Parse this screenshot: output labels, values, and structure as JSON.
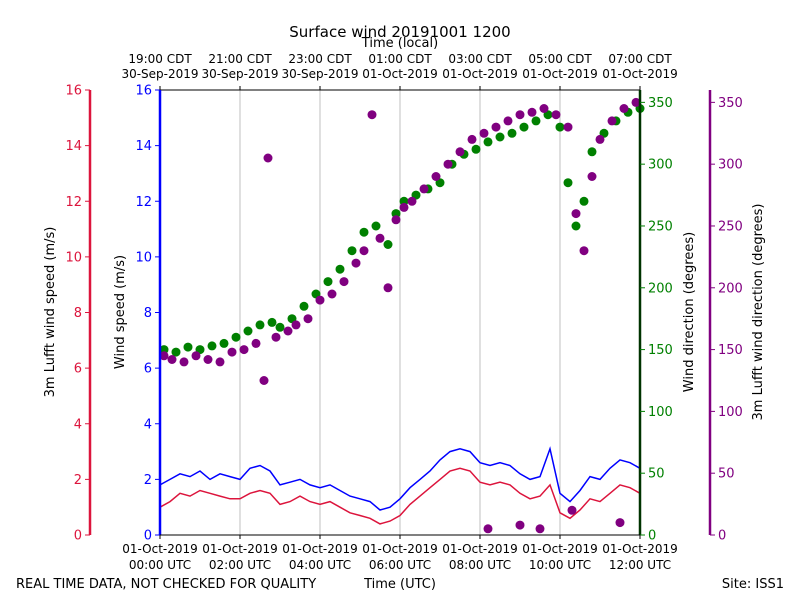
{
  "chart_data": {
    "type": "line+scatter",
    "title": "Surface wind 20191001 1200",
    "top_xlabel": "Time (local)",
    "xlabel": "Time (UTC)",
    "footer_left": "REAL TIME DATA, NOT CHECKED FOR QUALITY",
    "footer_right": "Site: ISS1",
    "x_range_hours": [
      0,
      12
    ],
    "bottom_ticks": [
      {
        "h": 0,
        "l1": "01-Oct-2019",
        "l2": "00:00 UTC"
      },
      {
        "h": 2,
        "l1": "01-Oct-2019",
        "l2": "02:00 UTC"
      },
      {
        "h": 4,
        "l1": "01-Oct-2019",
        "l2": "04:00 UTC"
      },
      {
        "h": 6,
        "l1": "01-Oct-2019",
        "l2": "06:00 UTC"
      },
      {
        "h": 8,
        "l1": "01-Oct-2019",
        "l2": "08:00 UTC"
      },
      {
        "h": 10,
        "l1": "01-Oct-2019",
        "l2": "10:00 UTC"
      },
      {
        "h": 12,
        "l1": "01-Oct-2019",
        "l2": "12:00 UTC"
      }
    ],
    "top_ticks": [
      {
        "h": 0,
        "l1": "19:00 CDT",
        "l2": "30-Sep-2019"
      },
      {
        "h": 2,
        "l1": "21:00 CDT",
        "l2": "30-Sep-2019"
      },
      {
        "h": 4,
        "l1": "23:00 CDT",
        "l2": "30-Sep-2019"
      },
      {
        "h": 6,
        "l1": "01:00 CDT",
        "l2": "01-Oct-2019"
      },
      {
        "h": 8,
        "l1": "03:00 CDT",
        "l2": "01-Oct-2019"
      },
      {
        "h": 10,
        "l1": "05:00 CDT",
        "l2": "01-Oct-2019"
      },
      {
        "h": 12,
        "l1": "07:00 CDT",
        "l2": "01-Oct-2019"
      }
    ],
    "axes": {
      "lufft_speed": {
        "label": "3m Lufft wind speed (m/s)",
        "color": "#dc143c",
        "ylim": [
          0,
          16
        ],
        "ticks": [
          "0",
          "2",
          "4",
          "6",
          "8",
          "10",
          "12",
          "14",
          "16"
        ]
      },
      "wind_speed": {
        "label": "Wind speed (m/s)",
        "color": "#0000ff",
        "ylim": [
          0,
          16
        ],
        "ticks": [
          "0",
          "2",
          "4",
          "6",
          "8",
          "10",
          "12",
          "14",
          "16"
        ]
      },
      "wind_dir": {
        "label": "Wind direction (degrees)",
        "color": "#008000",
        "ylim": [
          0,
          360
        ],
        "ticks": [
          "0",
          "50",
          "100",
          "150",
          "200",
          "250",
          "300",
          "350"
        ]
      },
      "lufft_dir": {
        "label": "3m Lufft wind direction (degrees)",
        "color": "#800080",
        "ylim": [
          0,
          360
        ],
        "ticks": [
          "0",
          "50",
          "100",
          "150",
          "200",
          "250",
          "300",
          "350"
        ]
      }
    },
    "series": [
      {
        "name": "Wind speed",
        "kind": "line",
        "color": "#0000ff",
        "axis": "wind_speed",
        "points": [
          [
            0,
            1.8
          ],
          [
            0.25,
            2.0
          ],
          [
            0.5,
            2.2
          ],
          [
            0.75,
            2.1
          ],
          [
            1.0,
            2.3
          ],
          [
            1.25,
            2.0
          ],
          [
            1.5,
            2.2
          ],
          [
            1.75,
            2.1
          ],
          [
            2.0,
            2.0
          ],
          [
            2.25,
            2.4
          ],
          [
            2.5,
            2.5
          ],
          [
            2.75,
            2.3
          ],
          [
            3.0,
            1.8
          ],
          [
            3.25,
            1.9
          ],
          [
            3.5,
            2.0
          ],
          [
            3.75,
            1.8
          ],
          [
            4.0,
            1.7
          ],
          [
            4.25,
            1.8
          ],
          [
            4.5,
            1.6
          ],
          [
            4.75,
            1.4
          ],
          [
            5.0,
            1.3
          ],
          [
            5.25,
            1.2
          ],
          [
            5.5,
            0.9
          ],
          [
            5.75,
            1.0
          ],
          [
            6.0,
            1.3
          ],
          [
            6.25,
            1.7
          ],
          [
            6.5,
            2.0
          ],
          [
            6.75,
            2.3
          ],
          [
            7.0,
            2.7
          ],
          [
            7.25,
            3.0
          ],
          [
            7.5,
            3.1
          ],
          [
            7.75,
            3.0
          ],
          [
            8.0,
            2.6
          ],
          [
            8.25,
            2.5
          ],
          [
            8.5,
            2.6
          ],
          [
            8.75,
            2.5
          ],
          [
            9.0,
            2.2
          ],
          [
            9.25,
            2.0
          ],
          [
            9.5,
            2.1
          ],
          [
            9.75,
            3.1
          ],
          [
            10.0,
            1.5
          ],
          [
            10.25,
            1.2
          ],
          [
            10.5,
            1.6
          ],
          [
            10.75,
            2.1
          ],
          [
            11.0,
            2.0
          ],
          [
            11.25,
            2.4
          ],
          [
            11.5,
            2.7
          ],
          [
            11.75,
            2.6
          ],
          [
            12.0,
            2.4
          ]
        ]
      },
      {
        "name": "3m Lufft wind speed",
        "kind": "line",
        "color": "#dc143c",
        "axis": "lufft_speed",
        "points": [
          [
            0,
            1.0
          ],
          [
            0.25,
            1.2
          ],
          [
            0.5,
            1.5
          ],
          [
            0.75,
            1.4
          ],
          [
            1.0,
            1.6
          ],
          [
            1.25,
            1.5
          ],
          [
            1.5,
            1.4
          ],
          [
            1.75,
            1.3
          ],
          [
            2.0,
            1.3
          ],
          [
            2.25,
            1.5
          ],
          [
            2.5,
            1.6
          ],
          [
            2.75,
            1.5
          ],
          [
            3.0,
            1.1
          ],
          [
            3.25,
            1.2
          ],
          [
            3.5,
            1.4
          ],
          [
            3.75,
            1.2
          ],
          [
            4.0,
            1.1
          ],
          [
            4.25,
            1.2
          ],
          [
            4.5,
            1.0
          ],
          [
            4.75,
            0.8
          ],
          [
            5.0,
            0.7
          ],
          [
            5.25,
            0.6
          ],
          [
            5.5,
            0.4
          ],
          [
            5.75,
            0.5
          ],
          [
            6.0,
            0.7
          ],
          [
            6.25,
            1.1
          ],
          [
            6.5,
            1.4
          ],
          [
            6.75,
            1.7
          ],
          [
            7.0,
            2.0
          ],
          [
            7.25,
            2.3
          ],
          [
            7.5,
            2.4
          ],
          [
            7.75,
            2.3
          ],
          [
            8.0,
            1.9
          ],
          [
            8.25,
            1.8
          ],
          [
            8.5,
            1.9
          ],
          [
            8.75,
            1.8
          ],
          [
            9.0,
            1.5
          ],
          [
            9.25,
            1.3
          ],
          [
            9.5,
            1.4
          ],
          [
            9.75,
            1.8
          ],
          [
            10.0,
            0.8
          ],
          [
            10.25,
            0.6
          ],
          [
            10.5,
            0.9
          ],
          [
            10.75,
            1.3
          ],
          [
            11.0,
            1.2
          ],
          [
            11.25,
            1.5
          ],
          [
            11.5,
            1.8
          ],
          [
            11.75,
            1.7
          ],
          [
            12.0,
            1.5
          ]
        ]
      },
      {
        "name": "Wind direction",
        "kind": "scatter",
        "color": "#008000",
        "axis": "wind_dir",
        "points": [
          [
            0.1,
            150
          ],
          [
            0.4,
            148
          ],
          [
            0.7,
            152
          ],
          [
            1.0,
            150
          ],
          [
            1.3,
            153
          ],
          [
            1.6,
            155
          ],
          [
            1.9,
            160
          ],
          [
            2.2,
            165
          ],
          [
            2.5,
            170
          ],
          [
            2.8,
            172
          ],
          [
            3.0,
            168
          ],
          [
            3.3,
            175
          ],
          [
            3.6,
            185
          ],
          [
            3.9,
            195
          ],
          [
            4.2,
            205
          ],
          [
            4.5,
            215
          ],
          [
            4.8,
            230
          ],
          [
            5.1,
            245
          ],
          [
            5.4,
            250
          ],
          [
            5.7,
            235
          ],
          [
            5.9,
            260
          ],
          [
            6.1,
            270
          ],
          [
            6.4,
            275
          ],
          [
            6.7,
            280
          ],
          [
            7.0,
            285
          ],
          [
            7.3,
            300
          ],
          [
            7.6,
            308
          ],
          [
            7.9,
            312
          ],
          [
            8.2,
            318
          ],
          [
            8.5,
            322
          ],
          [
            8.8,
            325
          ],
          [
            9.1,
            330
          ],
          [
            9.4,
            335
          ],
          [
            9.7,
            340
          ],
          [
            10.0,
            330
          ],
          [
            10.2,
            285
          ],
          [
            10.4,
            250
          ],
          [
            10.6,
            270
          ],
          [
            10.8,
            310
          ],
          [
            11.1,
            325
          ],
          [
            11.4,
            335
          ],
          [
            11.7,
            342
          ],
          [
            12.0,
            345
          ]
        ]
      },
      {
        "name": "3m Lufft wind direction",
        "kind": "scatter",
        "color": "#800080",
        "axis": "lufft_dir",
        "points": [
          [
            0.1,
            145
          ],
          [
            0.3,
            142
          ],
          [
            0.6,
            140
          ],
          [
            0.9,
            145
          ],
          [
            1.2,
            142
          ],
          [
            1.5,
            140
          ],
          [
            1.8,
            148
          ],
          [
            2.1,
            150
          ],
          [
            2.4,
            155
          ],
          [
            2.6,
            125
          ],
          [
            2.7,
            305
          ],
          [
            2.9,
            160
          ],
          [
            3.2,
            165
          ],
          [
            3.4,
            170
          ],
          [
            3.7,
            175
          ],
          [
            4.0,
            190
          ],
          [
            4.3,
            195
          ],
          [
            4.6,
            205
          ],
          [
            4.9,
            220
          ],
          [
            5.1,
            230
          ],
          [
            5.3,
            340
          ],
          [
            5.5,
            240
          ],
          [
            5.7,
            200
          ],
          [
            5.9,
            255
          ],
          [
            6.1,
            265
          ],
          [
            6.3,
            270
          ],
          [
            6.6,
            280
          ],
          [
            6.9,
            290
          ],
          [
            7.2,
            300
          ],
          [
            7.5,
            310
          ],
          [
            7.8,
            320
          ],
          [
            8.1,
            325
          ],
          [
            8.4,
            330
          ],
          [
            8.7,
            335
          ],
          [
            9.0,
            340
          ],
          [
            9.3,
            342
          ],
          [
            9.6,
            345
          ],
          [
            9.9,
            340
          ],
          [
            10.2,
            330
          ],
          [
            10.4,
            260
          ],
          [
            10.6,
            230
          ],
          [
            10.8,
            290
          ],
          [
            11.0,
            320
          ],
          [
            11.3,
            335
          ],
          [
            11.6,
            345
          ],
          [
            11.9,
            350
          ],
          [
            8.2,
            5
          ],
          [
            9.0,
            8
          ],
          [
            9.5,
            5
          ],
          [
            10.3,
            20
          ],
          [
            11.5,
            10
          ]
        ]
      }
    ]
  }
}
